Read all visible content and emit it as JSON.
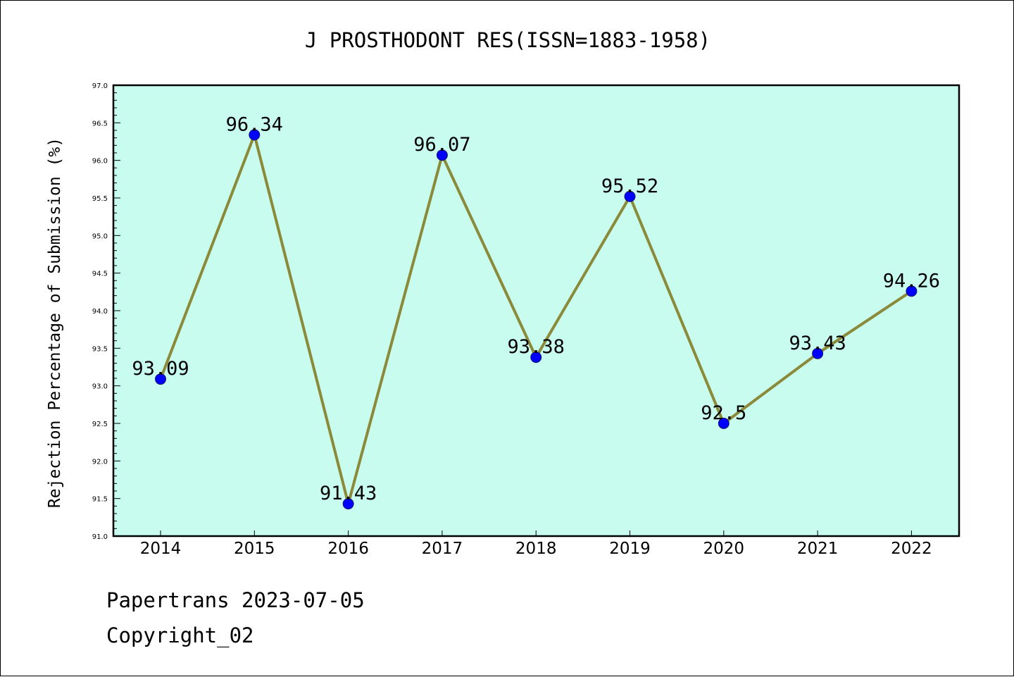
{
  "chart_data": {
    "type": "line",
    "title": "J PROSTHODONT RES(ISSN=1883-1958)",
    "xlabel": "",
    "ylabel": "Rejection Percentage of Submission (%)",
    "categories": [
      "2014",
      "2015",
      "2016",
      "2017",
      "2018",
      "2019",
      "2020",
      "2021",
      "2022"
    ],
    "series": [
      {
        "values": [
          93.09,
          96.34,
          91.43,
          96.07,
          93.38,
          95.52,
          92.5,
          93.43,
          94.26
        ],
        "labels": [
          "93.09",
          "96.34",
          "91.43",
          "96.07",
          "93.38",
          "95.52",
          "92.5",
          "93.43",
          "94.26"
        ],
        "line_color": "#8b8a3a",
        "marker_color": "#0000ff"
      }
    ],
    "ylim": [
      91.0,
      97.0
    ],
    "yticks": [
      "91.0",
      "91.5",
      "92.0",
      "92.5",
      "93.0",
      "93.5",
      "94.0",
      "94.5",
      "95.0",
      "95.5",
      "96.0",
      "96.5",
      "97.0"
    ],
    "grid": false,
    "plot_background": "#c8fcee"
  },
  "footer": {
    "line1": "Papertrans 2023-07-05",
    "line2": "Copyright_02"
  }
}
